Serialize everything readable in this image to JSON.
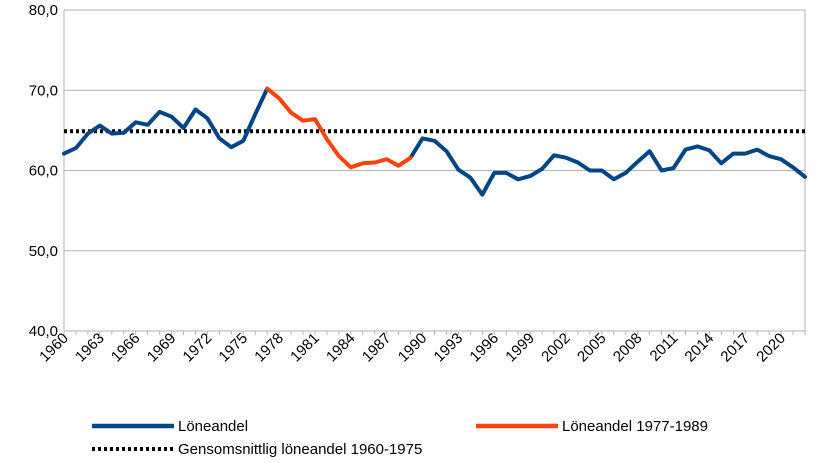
{
  "chart_data": {
    "type": "line",
    "title": "",
    "xlabel": "",
    "ylabel": "",
    "ylim": [
      40,
      80
    ],
    "yticks": [
      40,
      50,
      60,
      70,
      80
    ],
    "ytick_labels": [
      "40,0",
      "50,0",
      "60,0",
      "70,0",
      "80,0"
    ],
    "xlim": [
      1960,
      2022
    ],
    "xticks": [
      1960,
      1963,
      1966,
      1969,
      1972,
      1975,
      1978,
      1981,
      1984,
      1987,
      1990,
      1993,
      1996,
      1999,
      2002,
      2005,
      2008,
      2011,
      2014,
      2017,
      2020
    ],
    "xtick_labels": [
      "1960",
      "1963",
      "1966",
      "1969",
      "1972",
      "1975",
      "1978",
      "1981",
      "1984",
      "1987",
      "1990",
      "1993",
      "1996",
      "1999",
      "2002",
      "2005",
      "2008",
      "2011",
      "2014",
      "2017",
      "2020"
    ],
    "grid": "horizontal",
    "legend_position": "bottom",
    "series": [
      {
        "name": "Löneandel",
        "color": "#004586",
        "style": "solid",
        "x": [
          1960,
          1961,
          1962,
          1963,
          1964,
          1965,
          1966,
          1967,
          1968,
          1969,
          1970,
          1971,
          1972,
          1973,
          1974,
          1975,
          1976,
          1977,
          1978,
          1979,
          1980,
          1981,
          1982,
          1983,
          1984,
          1985,
          1986,
          1987,
          1988,
          1989,
          1990,
          1991,
          1992,
          1993,
          1994,
          1995,
          1996,
          1997,
          1998,
          1999,
          2000,
          2001,
          2002,
          2003,
          2004,
          2005,
          2006,
          2007,
          2008,
          2009,
          2010,
          2011,
          2012,
          2013,
          2014,
          2015,
          2016,
          2017,
          2018,
          2019,
          2020,
          2021,
          2022
        ],
        "values": [
          62.1,
          62.8,
          64.6,
          65.6,
          64.6,
          64.7,
          66.0,
          65.7,
          67.3,
          66.7,
          65.3,
          67.6,
          66.5,
          64.0,
          62.9,
          63.7,
          67.0,
          70.2,
          null,
          null,
          null,
          null,
          null,
          null,
          null,
          null,
          null,
          null,
          null,
          61.6,
          64.0,
          63.7,
          62.4,
          60.1,
          59.1,
          57.0,
          59.7,
          59.7,
          58.9,
          59.3,
          60.2,
          61.9,
          61.6,
          61.0,
          60.0,
          60.0,
          58.9,
          59.7,
          61.1,
          62.4,
          60.0,
          60.3,
          62.6,
          63.0,
          62.5,
          60.9,
          62.1,
          62.1,
          62.6,
          61.8,
          61.4,
          60.4,
          59.2
        ]
      },
      {
        "name": "Löneandel 1977-1989",
        "color": "#ff420e",
        "style": "solid",
        "x": [
          1977,
          1978,
          1979,
          1980,
          1981,
          1982,
          1983,
          1984,
          1985,
          1986,
          1987,
          1988,
          1989
        ],
        "values": [
          70.2,
          69.0,
          67.2,
          66.2,
          66.4,
          63.9,
          61.8,
          60.4,
          60.9,
          61.0,
          61.4,
          60.6,
          61.6
        ]
      },
      {
        "name": "Gensomsnittlig löneandel 1960-1975",
        "color": "#000000",
        "style": "dotted",
        "x": [
          1960,
          2022
        ],
        "values": [
          64.9,
          64.9
        ]
      }
    ]
  }
}
